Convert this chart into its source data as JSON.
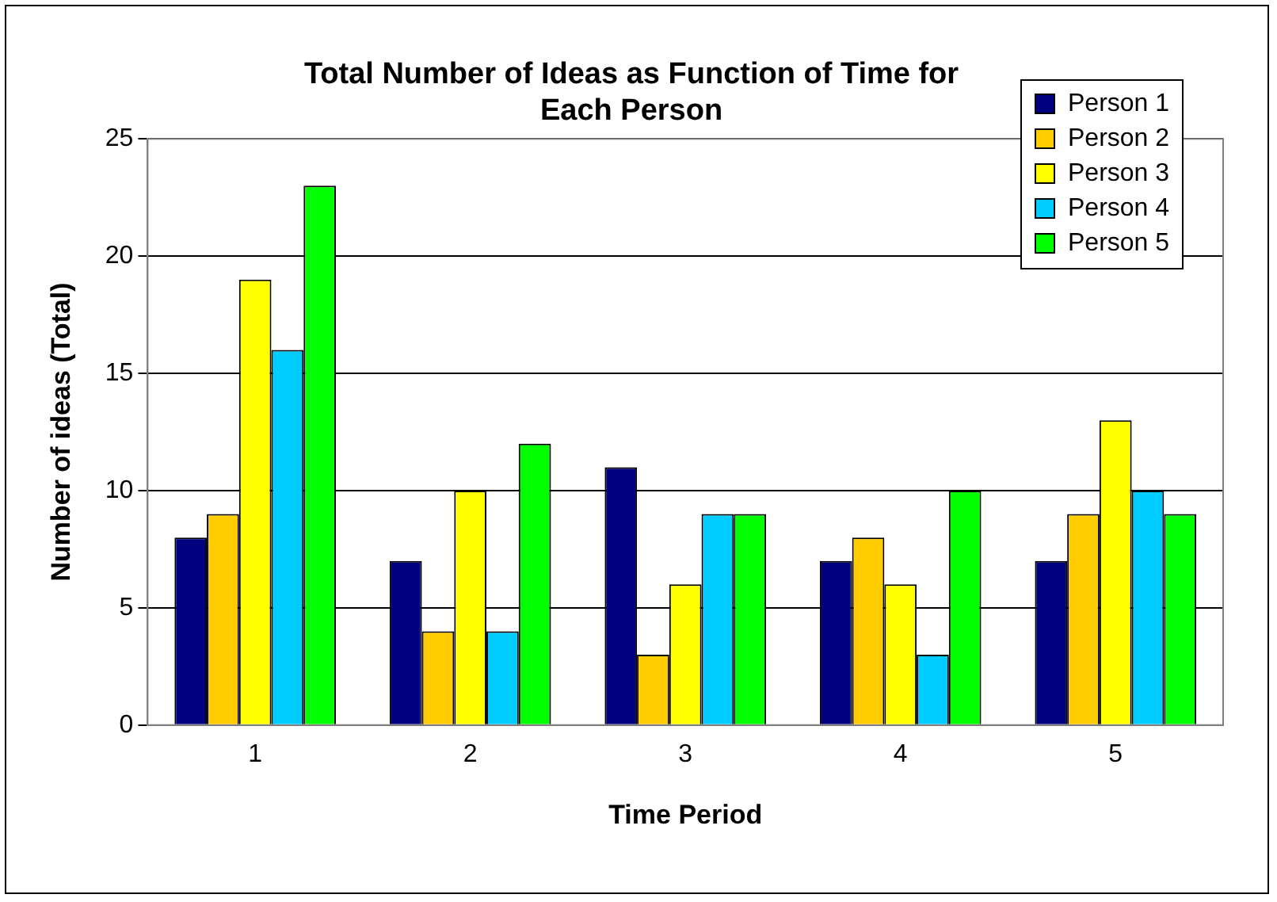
{
  "chart_data": {
    "type": "bar",
    "title": "Total Number of Ideas as Function of Time for Each Person",
    "xlabel": "Time Period",
    "ylabel": "Number of ideas (Total)",
    "categories": [
      "1",
      "2",
      "3",
      "4",
      "5"
    ],
    "series": [
      {
        "name": "Person 1",
        "color": "#000080",
        "values": [
          8,
          7,
          11,
          7,
          7
        ]
      },
      {
        "name": "Person 2",
        "color": "#ffcc00",
        "values": [
          9,
          4,
          3,
          8,
          9
        ]
      },
      {
        "name": "Person 3",
        "color": "#ffff00",
        "values": [
          19,
          10,
          6,
          6,
          13
        ]
      },
      {
        "name": "Person 4",
        "color": "#00ccff",
        "values": [
          16,
          4,
          9,
          3,
          10
        ]
      },
      {
        "name": "Person 5",
        "color": "#00ff00",
        "values": [
          23,
          12,
          9,
          10,
          9
        ]
      }
    ],
    "ylim": [
      0,
      25
    ],
    "yticks": [
      0,
      5,
      10,
      15,
      20,
      25
    ],
    "grid": "y",
    "legend": "top right"
  }
}
